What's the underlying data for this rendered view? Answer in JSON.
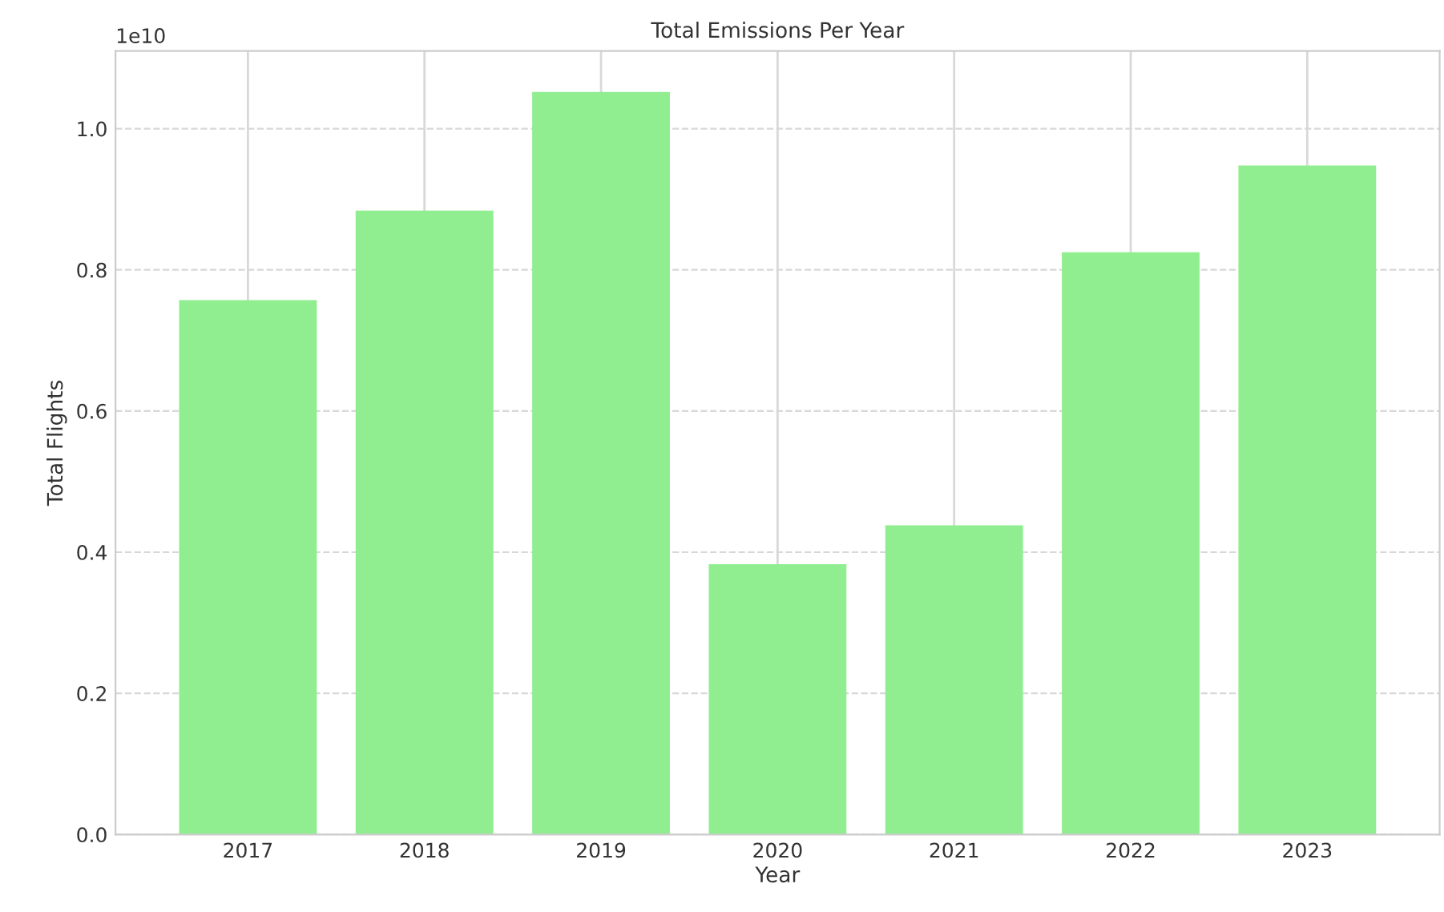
{
  "chart_data": {
    "type": "bar",
    "title": "Total Emissions Per Year",
    "xlabel": "Year",
    "ylabel": "Total Flights",
    "categories": [
      "2017",
      "2018",
      "2019",
      "2020",
      "2021",
      "2022",
      "2023"
    ],
    "values": [
      0.757,
      0.884,
      1.052,
      0.383,
      0.438,
      0.825,
      0.948
    ],
    "color": "#90ee90",
    "ylim": [
      0,
      1.11
    ],
    "yticks": [
      {
        "value": 0,
        "label": "0.0"
      },
      {
        "value": 0.2,
        "label": "0.2"
      },
      {
        "value": 0.4,
        "label": "0.4"
      },
      {
        "value": 0.6,
        "label": "0.6"
      },
      {
        "value": 0.8,
        "label": "0.8"
      },
      {
        "value": 1.0,
        "label": "1.0"
      }
    ],
    "annotations": [
      "1e10"
    ],
    "grid": true
  }
}
